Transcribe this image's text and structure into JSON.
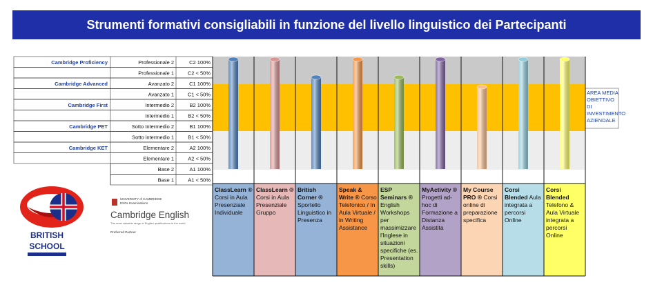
{
  "header": {
    "title": "Strumenti formativi consigliabili in funzione del livello linguistico dei Partecipanti"
  },
  "levels": [
    {
      "cambridge": "Cambridge Proficiency",
      "name": "Professionale 2",
      "code": "C2 100%"
    },
    {
      "name": "Professionale 1",
      "code": "C2 < 50%"
    },
    {
      "cambridge": "Cambridge Advanced",
      "name": "Avanzato 2",
      "code": "C1 100%"
    },
    {
      "name": "Avanzato 1",
      "code": "C1 < 50%"
    },
    {
      "cambridge": "Cambridge First",
      "name": "Intermedio 2",
      "code": "B2 100%"
    },
    {
      "name": "Intermedio 1",
      "code": "B2 < 50%"
    },
    {
      "cambridge": "Cambridge PET",
      "name": "Sotto Intermedio 2",
      "code": "B1 100%"
    },
    {
      "name": "Sotto intermedio 1",
      "code": "B1 < 50%"
    },
    {
      "cambridge": "Cambridge KET",
      "name": "Elementare 2",
      "code": "A2 100%"
    },
    {
      "name": "Elementare 1",
      "code": "A2 < 50%"
    },
    {
      "name": "Base 2",
      "code": "A1 100%"
    },
    {
      "name": "Base 1",
      "code": "A1 < 50%"
    }
  ],
  "tools": [
    {
      "name": "ClassLearn ®",
      "description": "Corsi in Aula Presenziale Individuale"
    },
    {
      "name": "ClassLearn ®",
      "description": "Corsi in Aula Presenziale Gruppo"
    },
    {
      "name": "British Corner ®",
      "description": "Sportello Linguistico in Presenza"
    },
    {
      "name": "Speak & Write ®",
      "description": "Corso Telefonico / In Aula Virtuale / in Writing Assistance"
    },
    {
      "name": "ESP Seminars ®",
      "description": "English Workshops per massimizzare l'Inglese in situazioni specifiche (es. Presentation skills)"
    },
    {
      "name": "MyActivity ®",
      "description": "Progetti ad-hoc di Formazione a Distanza Assistita"
    },
    {
      "name": "My Course PRO ®",
      "description": "Corsi online di preparazione specifica"
    },
    {
      "name": "Corsi Blended",
      "description": "Aula integrata a percorsi Online"
    },
    {
      "name": "Corsi Blended",
      "description": "Telefono & Aula Virtuale integrata a percorsi Online"
    }
  ],
  "area_note": "AREA MEDIA OBIETTIVO DI INVESTIMENTO AZIENDALE",
  "logos": {
    "school_top": "BRITISH",
    "school_bottom": "SCHOOL",
    "university": "UNIVERSITY of CAMBRIDGE",
    "esol": "ESOL Examinations",
    "brand": "Cambridge English",
    "tagline": "The most valuable range of English qualifications in the world",
    "partner": "Preferred Partner"
  }
}
